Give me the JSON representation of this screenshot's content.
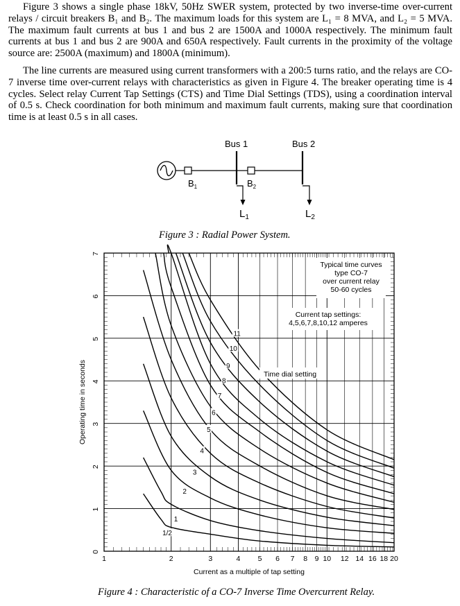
{
  "paragraphs": [
    "Figure 3 shows a single phase 18kV, 50Hz SWER system, protected by two inverse-time over-current relays / circuit breakers B₁ and B₂. The maximum loads for this system are L₁ = 8 MVA, and L₂ = 5 MVA. The maximum fault currents at bus 1 and bus 2 are 1500A and 1000A respectively. The minimum fault currents at bus 1 and bus 2 are 900A and 650A respectively. Fault currents in the proximity of the voltage source are: 2500A (maximum) and 1800A (minimum).",
    "The line currents are measured using current transformers with a 200:5 turns ratio, and the relays are CO-7 inverse time over-current relays with characteristics as given in Figure 4. The breaker operating time is 4 cycles. Select relay Current Tap Settings (CTS) and Time Dial Settings (TDS), using a coordination interval of 0.5 s. Check coordination for both minimum and maximum fault currents, making sure that coordination time is at least 0.5 s in all cases."
  ],
  "figure3": {
    "bus1": "Bus 1",
    "bus2": "Bus 2",
    "b1": "B",
    "b1_sub": "1",
    "b2": "B",
    "b2_sub": "2",
    "l1": "L",
    "l1_sub": "1",
    "l2": "L",
    "l2_sub": "2",
    "caption": "Figure 3 : Radial Power System."
  },
  "figure4": {
    "caption": "Figure 4 : Characteristic of a CO-7 Inverse Time Overcurrent Relay.",
    "title_lines": [
      "Typical time curves",
      "type CO-7",
      "over current relay",
      "50-60 cycles"
    ],
    "tap_lines": [
      "Current tap settings:",
      "4,5,6,7,8,10,12 amperes"
    ],
    "dial_label": "Time dial setting"
  },
  "chart_data": {
    "type": "line",
    "title": "",
    "xlabel": "Current as a multiple of tap setting",
    "ylabel": "Operating time in seconds",
    "xscale": "log",
    "xlim": [
      1,
      20
    ],
    "ylim": [
      0,
      7
    ],
    "x_ticks": [
      "1",
      "2",
      "3",
      "4",
      "5",
      "6",
      "7",
      "8",
      "9",
      "10",
      "12",
      "14",
      "16",
      "18",
      "20"
    ],
    "y_ticks": [
      "0",
      "1",
      "2",
      "3",
      "4",
      "5",
      "6",
      "7"
    ],
    "grid": true,
    "series": [
      {
        "name": "1/2",
        "x": [
          1.5,
          1.8,
          2,
          3,
          5,
          10,
          20
        ],
        "y": [
          1.35,
          0.75,
          0.56,
          0.4,
          0.24,
          0.14,
          0.1
        ]
      },
      {
        "name": "1",
        "x": [
          1.5,
          1.8,
          2,
          3,
          5,
          10,
          20
        ],
        "y": [
          2.2,
          1.4,
          1.1,
          0.72,
          0.48,
          0.3,
          0.2
        ]
      },
      {
        "name": "2",
        "x": [
          1.5,
          2,
          3,
          5,
          10,
          20
        ],
        "y": [
          3.3,
          1.9,
          1.25,
          0.85,
          0.55,
          0.42
        ]
      },
      {
        "name": "3",
        "x": [
          1.5,
          2,
          3,
          5,
          10,
          20
        ],
        "y": [
          4.4,
          2.7,
          1.75,
          1.2,
          0.8,
          0.6
        ]
      },
      {
        "name": "4",
        "x": [
          1.5,
          2,
          3,
          5,
          10,
          20
        ],
        "y": [
          5.5,
          3.6,
          2.3,
          1.6,
          1.05,
          0.78
        ]
      },
      {
        "name": "5",
        "x": [
          1.5,
          2,
          3,
          5,
          10,
          20
        ],
        "y": [
          6.6,
          4.5,
          2.85,
          2.0,
          1.3,
          0.98
        ]
      },
      {
        "name": "6",
        "x": [
          1.7,
          2,
          3,
          5,
          10,
          20
        ],
        "y": [
          7,
          5.3,
          3.4,
          2.4,
          1.6,
          1.15
        ]
      },
      {
        "name": "7",
        "x": [
          1.85,
          2,
          3,
          5,
          10,
          20
        ],
        "y": [
          7,
          6.2,
          3.9,
          2.8,
          1.85,
          1.35
        ]
      },
      {
        "name": "8",
        "x": [
          1.95,
          2,
          3,
          5,
          10,
          20
        ],
        "y": [
          7,
          7,
          4.4,
          3.1,
          2.1,
          1.55
        ]
      },
      {
        "name": "9",
        "x": [
          2.1,
          3,
          5,
          10,
          20
        ],
        "y": [
          7,
          4.9,
          3.5,
          2.35,
          1.75
        ]
      },
      {
        "name": "10",
        "x": [
          2.25,
          3,
          5,
          10,
          20
        ],
        "y": [
          7,
          5.4,
          3.9,
          2.6,
          1.95
        ]
      },
      {
        "name": "11",
        "x": [
          2.4,
          3,
          5,
          10,
          20
        ],
        "y": [
          7,
          5.9,
          4.25,
          2.85,
          2.15
        ]
      }
    ],
    "curve_label_positions": [
      {
        "label": "1/2",
        "x": 1.92,
        "y": 0.42
      },
      {
        "label": "1",
        "x": 2.1,
        "y": 0.75
      },
      {
        "label": "2",
        "x": 2.3,
        "y": 1.4
      },
      {
        "label": "3",
        "x": 2.55,
        "y": 1.85
      },
      {
        "label": "4",
        "x": 2.75,
        "y": 2.35
      },
      {
        "label": "5",
        "x": 2.95,
        "y": 2.85
      },
      {
        "label": "6",
        "x": 3.1,
        "y": 3.25
      },
      {
        "label": "7",
        "x": 3.3,
        "y": 3.65
      },
      {
        "label": "8",
        "x": 3.45,
        "y": 4.0
      },
      {
        "label": "9",
        "x": 3.6,
        "y": 4.35
      },
      {
        "label": "10",
        "x": 3.8,
        "y": 4.75
      },
      {
        "label": "11",
        "x": 3.95,
        "y": 5.1
      }
    ]
  }
}
